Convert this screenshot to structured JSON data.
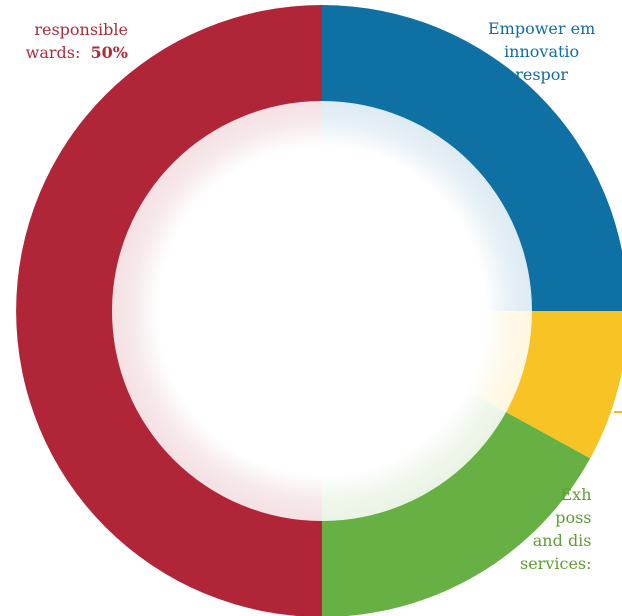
{
  "chart_data": {
    "type": "pie",
    "variant": "donut",
    "slices": [
      {
        "id": "blue",
        "lines": [
          "Empower em",
          "innovatio",
          "respor"
        ],
        "value": 25,
        "color": "#0f70a4"
      },
      {
        "id": "yellow",
        "lines": [],
        "value": 8,
        "color": "#f7c325"
      },
      {
        "id": "green",
        "lines": [
          "Exh",
          "poss",
          "and dis",
          "services:"
        ],
        "value": 17,
        "color": "#67b043"
      },
      {
        "id": "red",
        "lines": [
          "responsible",
          "wards:"
        ],
        "percent_label": "50%",
        "value": 50,
        "color": "#b02638"
      }
    ],
    "start_angle": "12 o'clock",
    "direction": "clockwise",
    "legend": "none",
    "inner_hole": "white with soft shadow"
  }
}
